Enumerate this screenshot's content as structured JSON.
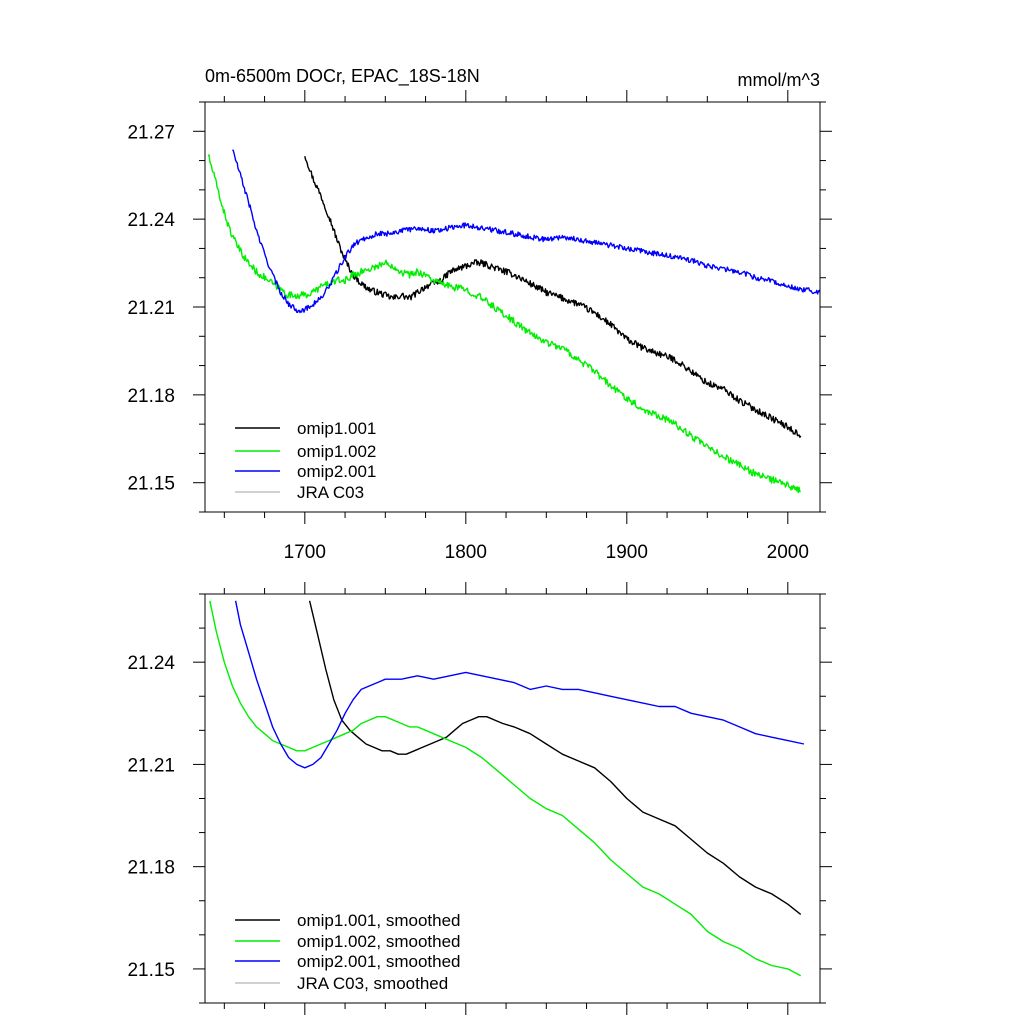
{
  "chart_data": [
    {
      "type": "line",
      "title": "0m-6500m DOCr, EPAC_18S-18N",
      "units": "mmol/m^3",
      "xlabel": "",
      "ylabel": "",
      "xlim": [
        1638,
        2020
      ],
      "ylim": [
        21.14,
        21.28
      ],
      "xticks": [
        1700,
        1800,
        1900,
        2000
      ],
      "xtick_labels": [
        "1700",
        "1800",
        "1900",
        "2000"
      ],
      "yticks": [
        21.15,
        21.18,
        21.21,
        21.24,
        21.27
      ],
      "ytick_labels": [
        "21.15",
        "21.18",
        "21.21",
        "21.24",
        "21.27"
      ],
      "legend_position": "bottom-left",
      "series": [
        {
          "name": "omip1.001",
          "color": "#000000",
          "noise": 0.0011,
          "x": [
            1700,
            1705,
            1710,
            1715,
            1720,
            1725,
            1730,
            1735,
            1740,
            1745,
            1750,
            1755,
            1760,
            1765,
            1770,
            1775,
            1780,
            1785,
            1790,
            1795,
            1800,
            1805,
            1810,
            1815,
            1820,
            1830,
            1840,
            1850,
            1860,
            1870,
            1880,
            1890,
            1900,
            1910,
            1920,
            1930,
            1940,
            1950,
            1960,
            1970,
            1980,
            1990,
            2000,
            2008
          ],
          "y": [
            21.262,
            21.254,
            21.248,
            21.241,
            21.233,
            21.226,
            21.221,
            21.218,
            21.216,
            21.215,
            21.214,
            21.213,
            21.214,
            21.213,
            21.215,
            21.217,
            21.218,
            21.219,
            21.222,
            21.223,
            21.224,
            21.225,
            21.225,
            21.224,
            21.223,
            21.221,
            21.218,
            21.215,
            21.213,
            21.211,
            21.208,
            21.204,
            21.199,
            21.196,
            21.194,
            21.192,
            21.188,
            21.184,
            21.182,
            21.178,
            21.175,
            21.172,
            21.169,
            21.166
          ]
        },
        {
          "name": "omip1.002",
          "color": "#00ee00",
          "noise": 0.0012,
          "x": [
            1640,
            1645,
            1650,
            1655,
            1660,
            1665,
            1670,
            1675,
            1680,
            1685,
            1690,
            1695,
            1700,
            1705,
            1710,
            1715,
            1720,
            1725,
            1730,
            1735,
            1740,
            1745,
            1750,
            1755,
            1760,
            1765,
            1770,
            1775,
            1780,
            1785,
            1790,
            1800,
            1810,
            1820,
            1830,
            1840,
            1850,
            1860,
            1870,
            1880,
            1890,
            1900,
            1910,
            1920,
            1930,
            1940,
            1950,
            1960,
            1970,
            1980,
            1990,
            2000,
            2008
          ],
          "y": [
            21.262,
            21.252,
            21.242,
            21.234,
            21.229,
            21.225,
            21.222,
            21.22,
            21.218,
            21.216,
            21.214,
            21.214,
            21.214,
            21.215,
            21.217,
            21.218,
            21.219,
            21.219,
            21.221,
            21.222,
            21.223,
            21.224,
            21.225,
            21.224,
            21.222,
            21.221,
            21.222,
            21.221,
            21.219,
            21.218,
            21.217,
            21.216,
            21.213,
            21.209,
            21.205,
            21.201,
            21.198,
            21.196,
            21.192,
            21.188,
            21.183,
            21.179,
            21.175,
            21.173,
            21.17,
            21.166,
            21.162,
            21.159,
            21.156,
            21.153,
            21.151,
            21.149,
            21.147
          ]
        },
        {
          "name": "omip2.001",
          "color": "#0000ff",
          "noise": 0.0009,
          "x": [
            1655,
            1660,
            1665,
            1670,
            1675,
            1680,
            1685,
            1690,
            1695,
            1700,
            1705,
            1710,
            1715,
            1720,
            1725,
            1730,
            1735,
            1740,
            1745,
            1750,
            1760,
            1770,
            1780,
            1790,
            1800,
            1810,
            1820,
            1830,
            1840,
            1850,
            1860,
            1870,
            1880,
            1890,
            1900,
            1910,
            1920,
            1930,
            1940,
            1950,
            1960,
            1970,
            1980,
            1990,
            2000,
            2010,
            2020
          ],
          "y": [
            21.264,
            21.255,
            21.246,
            21.236,
            21.228,
            21.221,
            21.215,
            21.211,
            21.209,
            21.209,
            21.211,
            21.213,
            21.217,
            21.222,
            21.227,
            21.231,
            21.233,
            21.234,
            21.235,
            21.235,
            21.236,
            21.237,
            21.236,
            21.237,
            21.238,
            21.237,
            21.236,
            21.235,
            21.234,
            21.233,
            21.234,
            21.233,
            21.232,
            21.231,
            21.23,
            21.229,
            21.228,
            21.227,
            21.226,
            21.224,
            21.223,
            21.222,
            21.22,
            21.219,
            21.217,
            21.216,
            21.215
          ]
        },
        {
          "name": "JRA C03",
          "color": "#c0c0c0",
          "x": [],
          "y": []
        }
      ]
    },
    {
      "type": "line",
      "title": "",
      "xlabel": "",
      "ylabel": "",
      "xlim": [
        1638,
        2020
      ],
      "ylim": [
        21.14,
        21.26
      ],
      "xticks": [
        1700,
        1800,
        1900,
        2000
      ],
      "xtick_labels": [],
      "yticks": [
        21.15,
        21.18,
        21.21,
        21.24
      ],
      "ytick_labels": [
        "21.15",
        "21.18",
        "21.21",
        "21.24"
      ],
      "legend_position": "bottom-left",
      "series": [
        {
          "name": "omip1.001, smoothed",
          "color": "#000000",
          "x": [
            1703,
            1708,
            1713,
            1718,
            1723,
            1728,
            1733,
            1738,
            1743,
            1748,
            1753,
            1758,
            1763,
            1768,
            1773,
            1778,
            1783,
            1788,
            1793,
            1798,
            1803,
            1808,
            1813,
            1818,
            1823,
            1830,
            1840,
            1850,
            1860,
            1870,
            1880,
            1890,
            1900,
            1910,
            1920,
            1930,
            1940,
            1950,
            1960,
            1970,
            1980,
            1990,
            2000,
            2008
          ],
          "y": [
            21.258,
            21.248,
            21.238,
            21.229,
            21.223,
            21.22,
            21.218,
            21.216,
            21.215,
            21.214,
            21.214,
            21.213,
            21.213,
            21.214,
            21.215,
            21.216,
            21.217,
            21.218,
            21.22,
            21.222,
            21.223,
            21.224,
            21.224,
            21.223,
            21.222,
            21.221,
            21.219,
            21.216,
            21.213,
            21.211,
            21.209,
            21.205,
            21.2,
            21.196,
            21.194,
            21.192,
            21.188,
            21.184,
            21.181,
            21.177,
            21.174,
            21.172,
            21.169,
            21.166
          ]
        },
        {
          "name": "omip1.002, smoothed",
          "color": "#00ee00",
          "x": [
            1641,
            1645,
            1650,
            1655,
            1660,
            1665,
            1670,
            1675,
            1680,
            1685,
            1690,
            1695,
            1700,
            1705,
            1710,
            1715,
            1720,
            1725,
            1730,
            1735,
            1740,
            1745,
            1750,
            1755,
            1760,
            1765,
            1770,
            1775,
            1780,
            1790,
            1800,
            1810,
            1820,
            1830,
            1840,
            1850,
            1860,
            1870,
            1880,
            1890,
            1900,
            1910,
            1920,
            1930,
            1940,
            1950,
            1960,
            1970,
            1980,
            1990,
            2000,
            2008
          ],
          "y": [
            21.258,
            21.249,
            21.24,
            21.233,
            21.228,
            21.224,
            21.221,
            21.219,
            21.217,
            21.216,
            21.215,
            21.214,
            21.214,
            21.215,
            21.216,
            21.217,
            21.218,
            21.219,
            21.22,
            21.222,
            21.223,
            21.224,
            21.224,
            21.223,
            21.222,
            21.221,
            21.221,
            21.22,
            21.219,
            21.217,
            21.215,
            21.212,
            21.208,
            21.204,
            21.2,
            21.197,
            21.195,
            21.191,
            21.187,
            21.182,
            21.178,
            21.174,
            21.172,
            21.169,
            21.166,
            21.161,
            21.158,
            21.156,
            21.153,
            21.151,
            21.15,
            21.148
          ]
        },
        {
          "name": "omip2.001, smoothed",
          "color": "#0000ff",
          "x": [
            1657,
            1660,
            1665,
            1670,
            1675,
            1680,
            1685,
            1690,
            1695,
            1700,
            1705,
            1710,
            1715,
            1720,
            1725,
            1730,
            1735,
            1740,
            1745,
            1750,
            1760,
            1770,
            1780,
            1790,
            1800,
            1810,
            1820,
            1830,
            1840,
            1850,
            1860,
            1870,
            1880,
            1890,
            1900,
            1910,
            1920,
            1930,
            1940,
            1950,
            1960,
            1970,
            1980,
            1990,
            2000,
            2010
          ],
          "y": [
            21.258,
            21.251,
            21.243,
            21.235,
            21.228,
            21.221,
            21.216,
            21.212,
            21.21,
            21.209,
            21.21,
            21.212,
            21.216,
            21.22,
            21.225,
            21.229,
            21.232,
            21.233,
            21.234,
            21.235,
            21.235,
            21.236,
            21.235,
            21.236,
            21.237,
            21.236,
            21.235,
            21.234,
            21.232,
            21.233,
            21.232,
            21.232,
            21.231,
            21.23,
            21.229,
            21.228,
            21.227,
            21.227,
            21.225,
            21.224,
            21.223,
            21.221,
            21.219,
            21.218,
            21.217,
            21.216
          ]
        },
        {
          "name": "JRA C03, smoothed",
          "color": "#c0c0c0",
          "x": [],
          "y": []
        }
      ]
    }
  ]
}
